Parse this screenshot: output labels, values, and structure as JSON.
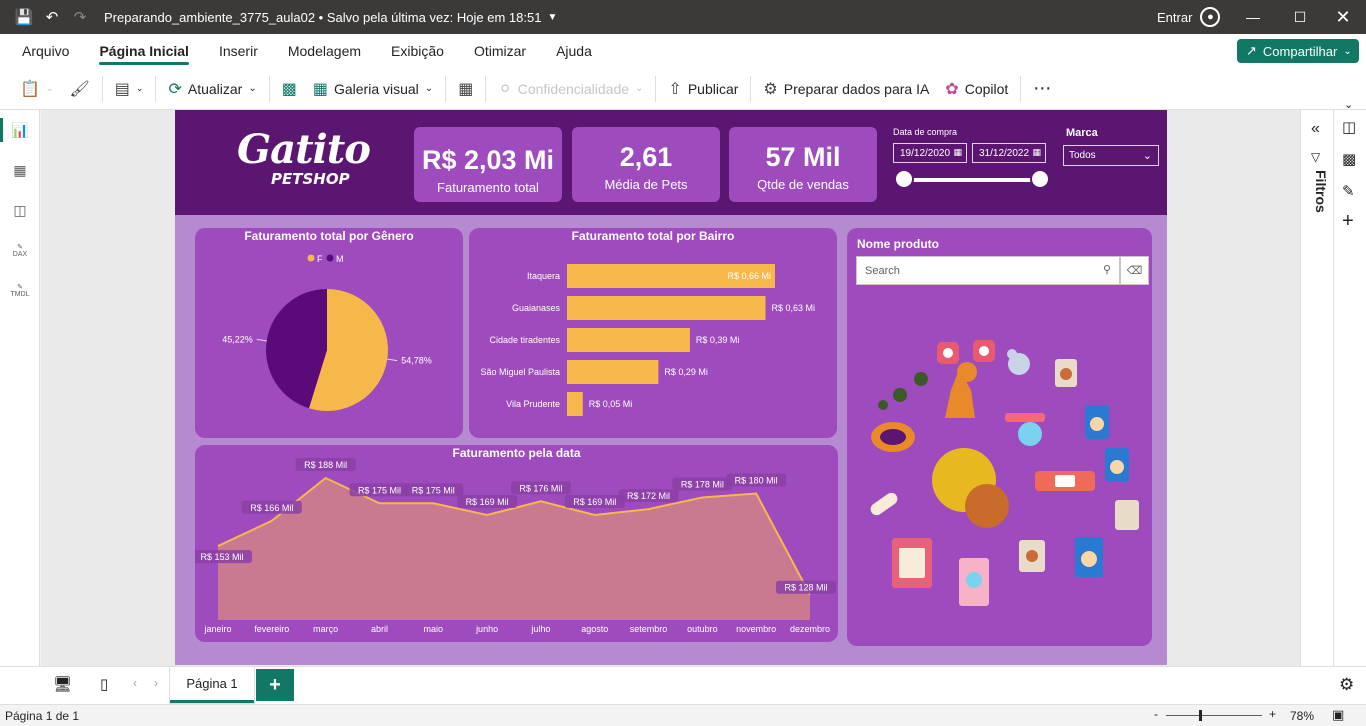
{
  "titlebar": {
    "title": "Preparando_ambiente_3775_aula02 • Salvo pela última vez: Hoje em 18:51",
    "signin": "Entrar"
  },
  "menu": {
    "items": [
      "Arquivo",
      "Página Inicial",
      "Inserir",
      "Modelagem",
      "Exibição",
      "Otimizar",
      "Ajuda"
    ],
    "active": "Página Inicial",
    "share": "Compartilhar"
  },
  "ribbon": {
    "atualizar": "Atualizar",
    "galeria": "Galeria visual",
    "confidencialidade": "Confidencialidade",
    "publicar": "Publicar",
    "preparar": "Preparar dados para IA",
    "copilot": "Copilot"
  },
  "leftrail": {
    "labels": [
      "DAX",
      "TMDL"
    ]
  },
  "report": {
    "logo": {
      "line1": "Gatito",
      "line2": "PETSHOP"
    },
    "kpis": [
      {
        "value": "R$ 2,03 Mi",
        "label": "Faturamento total"
      },
      {
        "value": "2,61",
        "label": "Média de Pets"
      },
      {
        "value": "57 Mil",
        "label": "Qtde de vendas"
      }
    ],
    "date_slicer": {
      "label": "Data de compra",
      "start": "19/12/2020",
      "end": "31/12/2022"
    },
    "marca_slicer": {
      "label": "Marca",
      "value": "Todos"
    },
    "search": {
      "title": "Nome produto",
      "placeholder": "Search"
    },
    "colors": {
      "header": "#5b1672",
      "panel": "#9e4bbe",
      "bg": "#b58ad0",
      "f": "#f7b84b",
      "m": "#5b0a7a",
      "area": "#c97a90",
      "line": "#f7b84b"
    }
  },
  "chart_data": [
    {
      "type": "pie",
      "title": "Faturamento total por Gênero",
      "legend": [
        "F",
        "M"
      ],
      "values": [
        54.78,
        45.22
      ],
      "labels": [
        "54,78%",
        "45,22%"
      ]
    },
    {
      "type": "bar",
      "title": "Faturamento total por Bairro",
      "categories": [
        "Itaquera",
        "Guaianases",
        "Cidade tiradentes",
        "São Miguel Paulista",
        "Vila Prudente"
      ],
      "values": [
        0.66,
        0.63,
        0.39,
        0.29,
        0.05
      ],
      "labels": [
        "R$ 0,66 Mi",
        "R$ 0,63 Mi",
        "R$ 0,39 Mi",
        "R$ 0,29 Mi",
        "R$ 0,05 Mi"
      ]
    },
    {
      "type": "area",
      "title": "Faturamento pela data",
      "x": [
        "janeiro",
        "fevereiro",
        "março",
        "abril",
        "maio",
        "junho",
        "julho",
        "agosto",
        "setembro",
        "outubro",
        "novembro",
        "dezembro"
      ],
      "values": [
        153,
        166,
        188,
        175,
        175,
        169,
        176,
        169,
        172,
        178,
        180,
        128
      ],
      "labels": [
        "R$ 153 Mil",
        "R$ 166 Mil",
        "R$ 188 Mil",
        "R$ 175 Mil",
        "R$ 175 Mil",
        "R$ 169 Mil",
        "R$ 176 Mil",
        "R$ 169 Mil",
        "R$ 172 Mil",
        "R$ 178 Mil",
        "R$ 180 Mil",
        "R$ 128 Mil"
      ]
    }
  ],
  "filters": {
    "label": "Filtros"
  },
  "pages": {
    "tab": "Página 1",
    "add": "+"
  },
  "status": {
    "page": "Página 1 de 1",
    "zoom": "78%"
  }
}
